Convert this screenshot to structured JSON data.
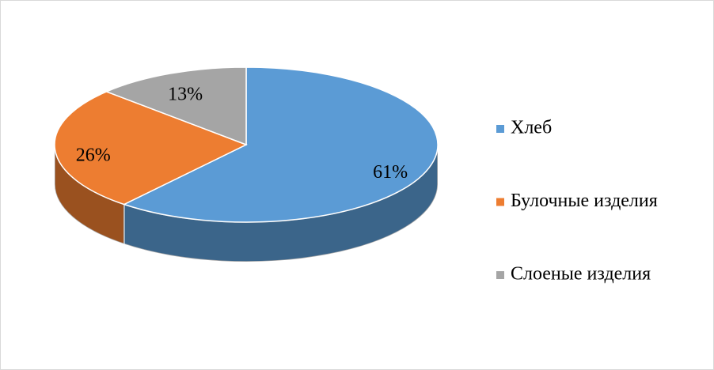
{
  "chart_data": {
    "type": "pie",
    "categories": [
      "Хлеб",
      "Булочные изделия",
      "Слоеные изделия"
    ],
    "values": [
      61,
      26,
      13
    ],
    "value_labels": [
      "61%",
      "26%",
      "13%"
    ],
    "colors": [
      "#5b9bd5",
      "#ed7d31",
      "#a5a5a5"
    ],
    "legend": "right"
  }
}
